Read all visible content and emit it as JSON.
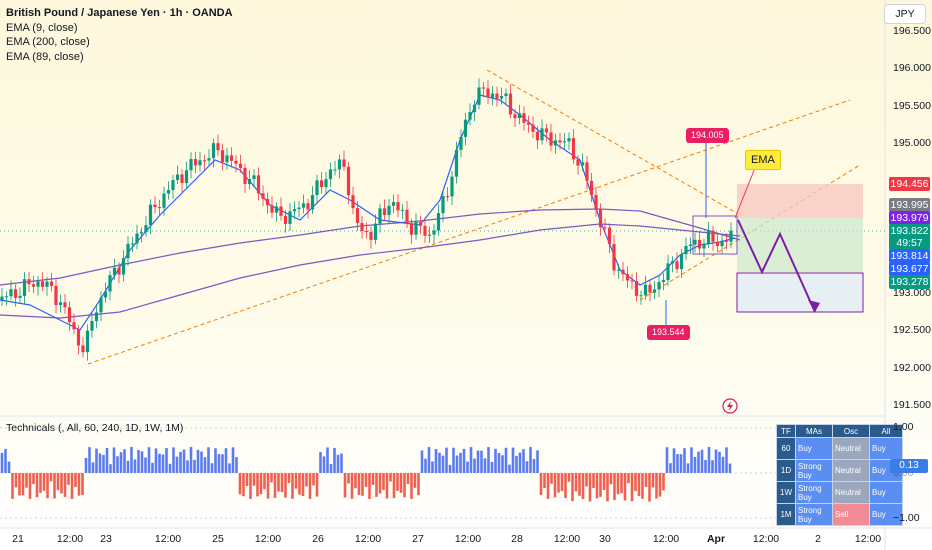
{
  "legend": {
    "title": "British Pound / Japanese Yen · 1h · OANDA",
    "indicators": [
      "EMA (9, close)",
      "EMA (200, close)",
      "EMA (89, close)"
    ]
  },
  "technicals_label": "Technicals (, All, 60, 240, 1D, 1W, 1M)",
  "currency": "JPY",
  "price_ticks": [
    "196.500",
    "196.000",
    "195.500",
    "195.000",
    "194.500",
    "194.000",
    "193.500",
    "193.000",
    "192.500",
    "192.000",
    "191.500"
  ],
  "price_tags": [
    {
      "text": "194.456",
      "color": "#f23645"
    },
    {
      "text": "193.995",
      "color": "#787b86"
    },
    {
      "text": "193.979",
      "color": "#7e22e8"
    },
    {
      "text": "193.822",
      "color": "#089981"
    },
    {
      "text": "49:57",
      "color": "#089981"
    },
    {
      "text": "193.814",
      "color": "#2962ff"
    },
    {
      "text": "193.677",
      "color": "#2962ff"
    },
    {
      "text": "193.278",
      "color": "#089981"
    }
  ],
  "osc_ticks": [
    "1.00",
    "0.00",
    "−1.00"
  ],
  "osc_value": "0.13",
  "time_labels": [
    {
      "text": "21",
      "bold": false
    },
    {
      "text": "12:00",
      "bold": false
    },
    {
      "text": "23",
      "bold": false
    },
    {
      "text": "12:00",
      "bold": false
    },
    {
      "text": "25",
      "bold": false
    },
    {
      "text": "12:00",
      "bold": false
    },
    {
      "text": "26",
      "bold": false
    },
    {
      "text": "12:00",
      "bold": false
    },
    {
      "text": "27",
      "bold": false
    },
    {
      "text": "12:00",
      "bold": false
    },
    {
      "text": "28",
      "bold": false
    },
    {
      "text": "12:00",
      "bold": false
    },
    {
      "text": "30",
      "bold": false
    },
    {
      "text": "12:00",
      "bold": false
    },
    {
      "text": "Apr",
      "bold": true
    },
    {
      "text": "12:00",
      "bold": false
    },
    {
      "text": "2",
      "bold": false
    },
    {
      "text": "12:00",
      "bold": false
    }
  ],
  "callouts": {
    "high": "194.005",
    "low": "193.544"
  },
  "ema_note": "EMA",
  "tech_table": {
    "headers": [
      "TF",
      "MAs",
      "Osc",
      "All"
    ],
    "rows": [
      {
        "tf": "60",
        "mas": "Buy",
        "osc": "Neutral",
        "all": "Buy"
      },
      {
        "tf": "1D",
        "mas": "Strong Buy",
        "osc": "Neutral",
        "all": "Buy"
      },
      {
        "tf": "1W",
        "mas": "Strong Buy",
        "osc": "Neutral",
        "all": "Buy"
      },
      {
        "tf": "1M",
        "mas": "Strong Buy",
        "osc": "Sell",
        "all": "Buy"
      }
    ]
  },
  "colors": {
    "up": "#089981",
    "down": "#f23645",
    "ema9": "#2962ff",
    "ema200": "#7e57c2",
    "trend": "#f57c00",
    "projection": "#7b1fa2",
    "hist_pos": "#5b7cf0",
    "hist_neg": "#f0604e"
  },
  "icons": {
    "flash": "lightning-bolt-icon"
  }
}
